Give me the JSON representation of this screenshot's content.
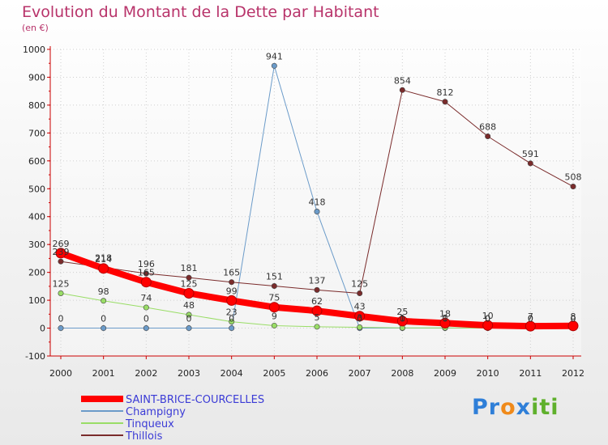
{
  "chart_data": {
    "type": "line",
    "title": "Evolution du Montant de la Dette par Habitant",
    "subtitle": "(en €)",
    "xlabel": "",
    "ylabel": "",
    "ylim": [
      -100,
      1000
    ],
    "yticks": [
      -100,
      0,
      100,
      200,
      300,
      400,
      500,
      600,
      700,
      800,
      900,
      1000
    ],
    "categories": [
      "2000",
      "2001",
      "2002",
      "2003",
      "2004",
      "2005",
      "2006",
      "2007",
      "2008",
      "2009",
      "2010",
      "2011",
      "2012"
    ],
    "series": [
      {
        "name": "SAINT-BRICE-COURCELLES",
        "color": "#ff0000",
        "width": 8,
        "values": [
          269,
          214,
          165,
          125,
          99,
          75,
          62,
          43,
          25,
          18,
          10,
          7,
          8
        ],
        "labels": [
          "269",
          "214",
          "165",
          "125",
          "99",
          "75",
          "62",
          "43",
          "25",
          "18",
          "10",
          "7",
          "8"
        ]
      },
      {
        "name": "Champigny",
        "color": "#6b9bc9",
        "width": 1,
        "values": [
          0,
          0,
          0,
          0,
          0,
          941,
          418,
          0,
          0,
          0,
          0,
          0,
          0
        ],
        "labels": [
          "0",
          "0",
          "0",
          "0",
          "0",
          "941",
          "418",
          "0",
          "0",
          "0",
          "0",
          "0",
          "0"
        ]
      },
      {
        "name": "Tinqueux",
        "color": "#99dd66",
        "width": 1,
        "values": [
          125,
          98,
          74,
          48,
          23,
          9,
          5,
          3,
          1,
          1,
          0,
          0,
          0
        ],
        "labels": [
          "125",
          "98",
          "74",
          "48",
          "23",
          "9",
          "5",
          "3",
          "1",
          "1",
          "0",
          "0",
          "0"
        ]
      },
      {
        "name": "Thillois",
        "color": "#7a2b2b",
        "width": 1,
        "values": [
          239,
          218,
          196,
          181,
          165,
          151,
          137,
          125,
          854,
          812,
          688,
          591,
          508
        ],
        "labels": [
          "239",
          "218",
          "196",
          "181",
          "165",
          "151",
          "137",
          "125",
          "854",
          "812",
          "688",
          "591",
          "508"
        ]
      }
    ]
  }
}
